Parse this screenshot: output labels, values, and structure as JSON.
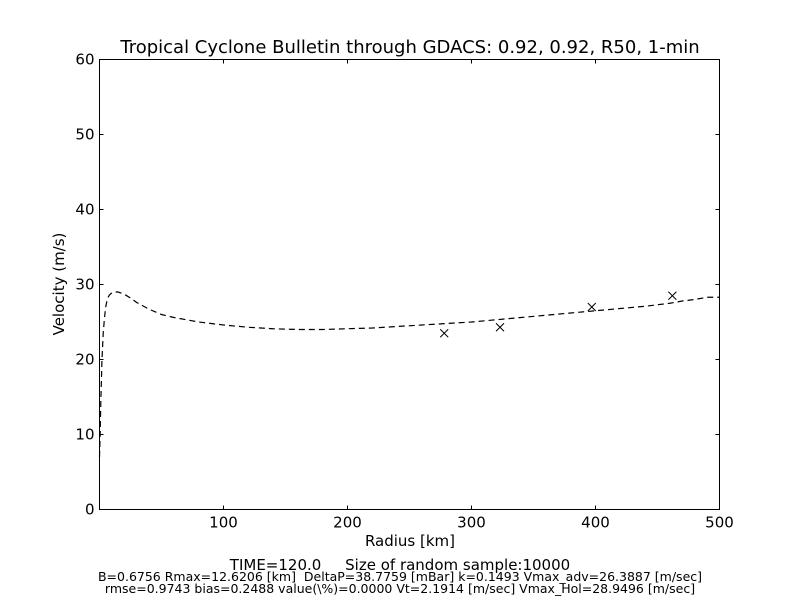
{
  "chart_data": {
    "type": "line",
    "title": "Tropical Cyclone Bulletin through GDACS: 0.92, 0.92, R50, 1-min",
    "xlabel": "Radius [km]",
    "ylabel": "Velocity (m/s)",
    "xlim": [
      0,
      500
    ],
    "ylim": [
      0,
      60
    ],
    "xticks": [
      100,
      200,
      300,
      400,
      500
    ],
    "yticks": [
      0,
      10,
      20,
      30,
      40,
      50,
      60
    ],
    "grid": false,
    "series": [
      {
        "style": "dashed-line",
        "color": "#000000",
        "x": [
          0,
          0.5,
          1,
          2,
          3,
          4,
          5,
          6,
          7,
          8,
          10,
          12.6,
          15,
          20,
          25,
          30,
          40,
          50,
          60,
          70,
          80,
          90,
          100,
          120,
          140,
          160,
          180,
          200,
          220,
          240,
          260,
          280,
          300,
          320,
          340,
          360,
          380,
          400,
          420,
          440,
          460,
          470,
          480,
          490,
          500
        ],
        "y": [
          7,
          10,
          14,
          20,
          23.5,
          25.5,
          27,
          27.8,
          28.3,
          28.6,
          28.9,
          29.0,
          29.0,
          28.7,
          28.2,
          27.6,
          26.7,
          26.0,
          25.6,
          25.3,
          25.0,
          24.8,
          24.6,
          24.3,
          24.1,
          24.0,
          24.0,
          24.1,
          24.2,
          24.4,
          24.6,
          24.8,
          25.0,
          25.3,
          25.6,
          25.9,
          26.2,
          26.5,
          26.8,
          27.1,
          27.5,
          27.8,
          28.0,
          28.3,
          28.3
        ]
      },
      {
        "style": "x-markers",
        "color": "#000000",
        "x": [
          278,
          323,
          397,
          462
        ],
        "y": [
          23.5,
          24.3,
          27.0,
          28.5
        ]
      }
    ]
  },
  "footer": {
    "time_line": "TIME=120.0     Size of random sample:10000",
    "params_line_1": "B=0.6756 Rmax=12.6206 [km]  DeltaP=38.7759 [mBar] k=0.1493 Vmax_adv=26.3887 [m/sec]",
    "params_line_2": "rmse=0.9743 bias=0.2488 value(\\%)=0.0000 Vt=2.1914 [m/sec] Vmax_Hol=28.9496 [m/sec]"
  }
}
